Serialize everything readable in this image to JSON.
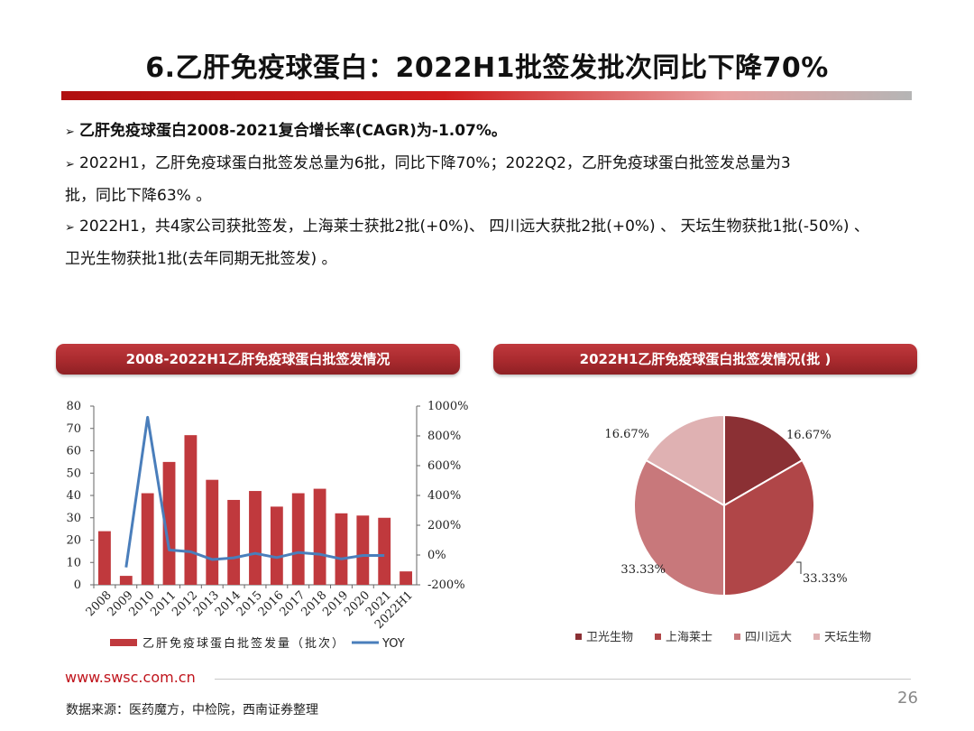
{
  "title": "6.乙肝免疫球蛋白：2022H1批签发批次同比下降70%",
  "bullets": [
    {
      "bold": true,
      "text": "乙肝免疫球蛋白2008-2021复合增长率(CAGR)为-1.07%。"
    },
    {
      "bold": false,
      "text": "2022H1，乙肝免疫球蛋白批签发总量为6批，同比下降70%；2022Q2，乙肝免疫球蛋白批签发总量为3"
    },
    {
      "bold": false,
      "text": "批，同比下降63% 。",
      "continuation": true
    },
    {
      "bold": false,
      "text": "2022H1，共4家公司获批签发，上海莱士获批2批(+0%)、 四川远大获批2批(+0%) 、 天坛生物获批1批(-50%) 、"
    },
    {
      "bold": false,
      "text": "卫光生物获批1批(去年同期无批签发) 。",
      "continuation": true
    }
  ],
  "bar_panel_title": "2008-2022H1乙肝免疫球蛋白批签发情况",
  "pie_panel_title": "2022H1乙肝免疫球蛋白批签发情况(批 )",
  "chart_data": [
    {
      "type": "bar",
      "categories": [
        "2008",
        "2009",
        "2010",
        "2011",
        "2012",
        "2013",
        "2014",
        "2015",
        "2016",
        "2017",
        "2018",
        "2019",
        "2020",
        "2021",
        "2022H1"
      ],
      "series": [
        {
          "name": "乙肝免疫球蛋白批签发量（批次）",
          "axis": "left",
          "type": "bar",
          "color": "#c0393d",
          "values": [
            24,
            4,
            41,
            55,
            67,
            47,
            38,
            42,
            35,
            41,
            43,
            32,
            31,
            30,
            6
          ]
        },
        {
          "name": "YOY",
          "axis": "right",
          "type": "line",
          "color": "#4a7ebb",
          "values": [
            null,
            -83,
            925,
            34,
            22,
            -30,
            -19,
            11,
            -17,
            17,
            5,
            -26,
            -3,
            -3,
            null
          ]
        }
      ],
      "ylim": [
        0,
        80
      ],
      "yticks": [
        0,
        10,
        20,
        30,
        40,
        50,
        60,
        70,
        80
      ],
      "y2lim": [
        -200,
        1000
      ],
      "y2ticks": [
        "-200%",
        "0%",
        "200%",
        "400%",
        "600%",
        "800%",
        "1000%"
      ],
      "legend": "bottom",
      "grid": false
    },
    {
      "type": "pie",
      "labels": [
        "卫光生物",
        "上海莱士",
        "四川远大",
        "天坛生物"
      ],
      "values": [
        1,
        2,
        2,
        1
      ],
      "percent_labels": [
        "16.67%",
        "33.33%",
        "33.33%",
        "16.67%"
      ],
      "colors": [
        "#8b3034",
        "#b04648",
        "#c8787b",
        "#dfb1b2"
      ],
      "legend": "bottom"
    }
  ],
  "footer": {
    "site": "www.swsc.com.cn",
    "source": "数据来源：医药魔方，中检院，西南证券整理",
    "page": "26"
  }
}
